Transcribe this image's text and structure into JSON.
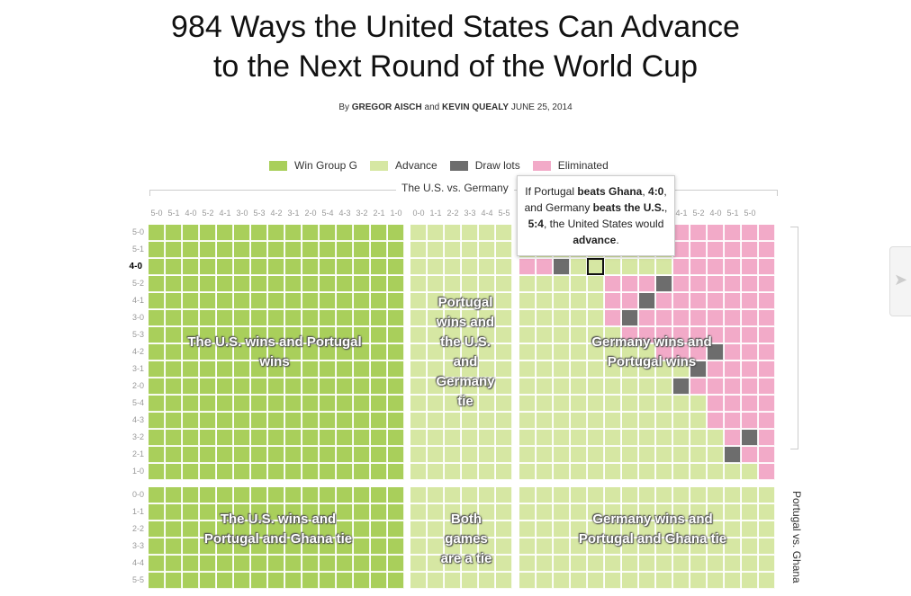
{
  "title_line1": "984 Ways the United States Can Advance",
  "title_line2": "to the Next Round of the World Cup",
  "byline": {
    "prefix": "By",
    "author1": "GREGOR AISCH",
    "and": "and",
    "author2": "KEVIN QUEALY",
    "date": "JUNE 25, 2014"
  },
  "legend": [
    {
      "label": "Win Group G",
      "color": "#a9cf5b"
    },
    {
      "label": "Advance",
      "color": "#d6e7a3"
    },
    {
      "label": "Draw lots",
      "color": "#6d6d6d"
    },
    {
      "label": "Eliminated",
      "color": "#f2aac8"
    }
  ],
  "colors": {
    "win": "#a9cf5b",
    "advance": "#d6e7a3",
    "draw": "#6d6d6d",
    "eliminated": "#f2aac8"
  },
  "x_axis_label": "The U.S. vs. Germany",
  "x_ticks_left": [
    "5-0",
    "5-1",
    "4-0",
    "5-2",
    "4-1",
    "3-0",
    "5-3",
    "4-2",
    "3-1",
    "2-0",
    "5-4",
    "4-3",
    "3-2",
    "2-1",
    "1-0"
  ],
  "x_ticks_mid": [
    "0-0",
    "1-1",
    "2-2",
    "3-3",
    "4-4",
    "5-5"
  ],
  "x_ticks_right": [
    "4-3",
    "3-0",
    "4-1",
    "5-2",
    "4-0",
    "5-1",
    "5-0"
  ],
  "y_ticks_top": [
    "5-0",
    "5-1",
    "4-0",
    "5-2",
    "4-1",
    "3-0",
    "5-3",
    "4-2",
    "3-1",
    "2-0",
    "5-4",
    "4-3",
    "3-2",
    "2-1",
    "1-0"
  ],
  "y_ticks_bottom": [
    "0-0",
    "1-1",
    "2-2",
    "3-3",
    "4-4",
    "5-5"
  ],
  "y_axis_label": "Portugal vs. Ghana",
  "selected_row": "4-0",
  "labels": {
    "us_wins_portugal_wins": "The U.S. wins and Portugal wins",
    "portugal_wins_us_germany_tie": "Portugal wins and the U.S. and Germany tie",
    "germany_wins_portugal_wins": "Germany wins and Portugal wins",
    "us_wins_portugal_ghana_tie": "The U.S. wins and Portugal and Ghana tie",
    "both_tie": "Both games are a tie",
    "germany_wins_portugal_ghana_tie": "Germany wins and Portugal and Ghana tie"
  },
  "tooltip": {
    "t1": "If Portugal ",
    "t2": "beats Ghana",
    "t3": ", ",
    "t4": "4:0",
    "t5": ", and Germany ",
    "t6": "beats the U.S.",
    "t7": ", ",
    "t8": "5:4",
    "t9": ", the United States would ",
    "t10": "advance",
    "t11": "."
  }
}
